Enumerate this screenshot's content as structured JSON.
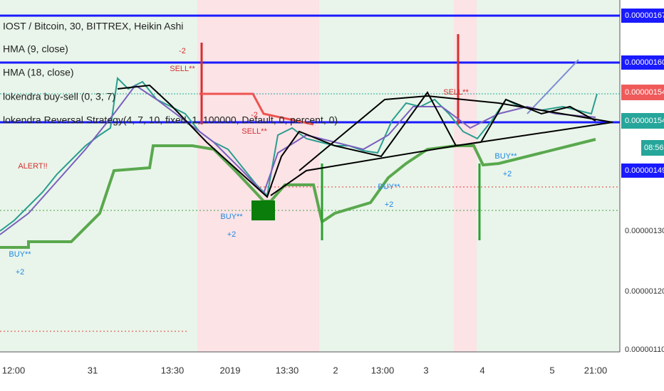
{
  "legend": [
    "IOST / Bitcoin, 30, BITTREX, Heikin Ashi",
    "HMA (9, close)",
    "HMA (18, close)",
    "lokendra buy-sell (0, 3, 7)",
    "lokendra Reversal Strategy(4, 7, 10, fixed, 1, 100000, Default, 0, percent, 0)"
  ],
  "price_axis": {
    "labels": [
      "0.00000167",
      "0.00000160",
      "0.00000154",
      "0.00000154",
      "08:56",
      "0.00000149",
      "0.00000130",
      "0.00000120",
      "0.00000110"
    ]
  },
  "time_axis": {
    "labels": [
      "12:00",
      "31",
      "13:30",
      "2019",
      "13:30",
      "2",
      "13:00",
      "3",
      "4",
      "5",
      "21:00"
    ]
  },
  "annotations": [
    "ALERT!!",
    "-2",
    "SELL**",
    "BUY**",
    "+2",
    "-2",
    "SELL**",
    "BUY**",
    "+2",
    "BUY**",
    "+2",
    "SELL**",
    "BUY**",
    "+2"
  ]
}
